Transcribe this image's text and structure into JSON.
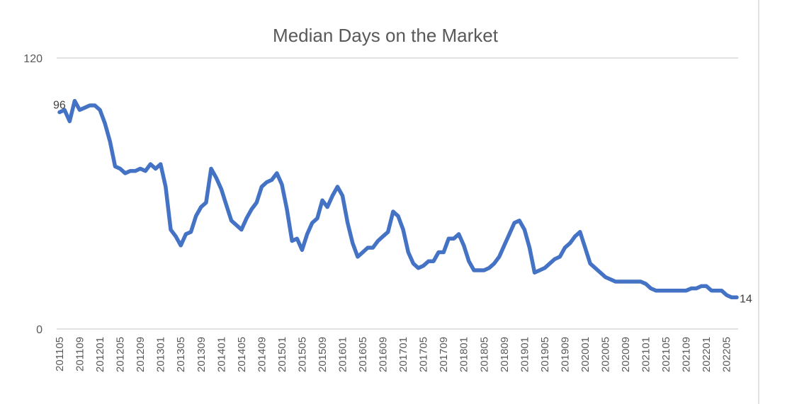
{
  "chart_data": {
    "type": "line",
    "title": "Median Days on the Market",
    "xlabel": "",
    "ylabel": "",
    "ylim": [
      0,
      120
    ],
    "y_ticks": [
      "0",
      "120"
    ],
    "grid": "horizontal",
    "line_color": "#4472C4",
    "tick_every": 4,
    "data_labels": {
      "first": "96",
      "last": "14"
    },
    "categories": [
      "201105",
      "201106",
      "201107",
      "201108",
      "201109",
      "201110",
      "201111",
      "201112",
      "201201",
      "201202",
      "201203",
      "201204",
      "201205",
      "201206",
      "201207",
      "201208",
      "201209",
      "201210",
      "201211",
      "201212",
      "201301",
      "201302",
      "201303",
      "201304",
      "201305",
      "201306",
      "201307",
      "201308",
      "201309",
      "201310",
      "201311",
      "201312",
      "201401",
      "201402",
      "201403",
      "201404",
      "201405",
      "201406",
      "201407",
      "201408",
      "201409",
      "201410",
      "201411",
      "201412",
      "201501",
      "201502",
      "201503",
      "201504",
      "201505",
      "201506",
      "201507",
      "201508",
      "201509",
      "201510",
      "201511",
      "201512",
      "201601",
      "201602",
      "201603",
      "201604",
      "201605",
      "201606",
      "201607",
      "201608",
      "201609",
      "201610",
      "201611",
      "201612",
      "201701",
      "201702",
      "201703",
      "201704",
      "201705",
      "201706",
      "201707",
      "201708",
      "201709",
      "201710",
      "201711",
      "201712",
      "201801",
      "201802",
      "201803",
      "201804",
      "201805",
      "201806",
      "201807",
      "201808",
      "201809",
      "201810",
      "201811",
      "201812",
      "201901",
      "201902",
      "201903",
      "201904",
      "201905",
      "201906",
      "201907",
      "201908",
      "201909",
      "201910",
      "201911",
      "201912",
      "202001",
      "202002",
      "202003",
      "202004",
      "202005",
      "202006",
      "202007",
      "202008",
      "202009",
      "202010",
      "202011",
      "202012",
      "202101",
      "202102",
      "202103",
      "202104",
      "202105",
      "202106",
      "202107",
      "202108",
      "202109",
      "202110",
      "202111",
      "202112",
      "202201",
      "202202",
      "202203",
      "202204",
      "202205",
      "202206",
      "202207"
    ],
    "values": [
      96,
      97,
      92,
      101,
      97,
      98,
      99,
      99,
      97,
      91,
      83,
      72,
      71,
      69,
      70,
      70,
      71,
      70,
      73,
      71,
      73,
      63,
      44,
      41,
      37,
      42,
      43,
      50,
      54,
      56,
      71,
      67,
      62,
      55,
      48,
      46,
      44,
      49,
      53,
      56,
      63,
      65,
      66,
      69,
      64,
      53,
      39,
      40,
      35,
      42,
      47,
      49,
      57,
      54,
      59,
      63,
      59,
      47,
      38,
      32,
      34,
      36,
      36,
      39,
      41,
      43,
      52,
      50,
      44,
      34,
      29,
      27,
      28,
      30,
      30,
      34,
      34,
      40,
      40,
      42,
      37,
      30,
      26,
      26,
      26,
      27,
      29,
      32,
      37,
      42,
      47,
      48,
      44,
      36,
      25,
      26,
      27,
      29,
      31,
      32,
      36,
      38,
      41,
      43,
      36,
      29,
      27,
      25,
      23,
      22,
      21,
      21,
      21,
      21,
      21,
      21,
      20,
      18,
      17,
      17,
      17,
      17,
      17,
      17,
      17,
      18,
      18,
      19,
      19,
      17,
      17,
      17,
      15,
      14,
      14
    ]
  }
}
